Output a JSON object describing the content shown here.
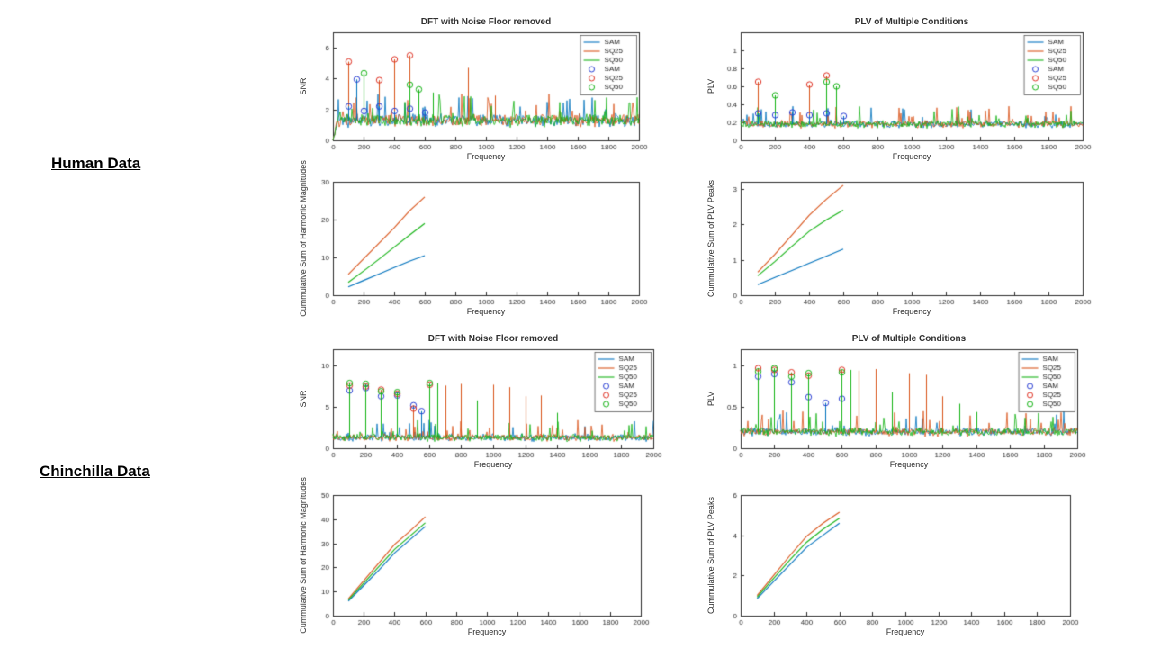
{
  "figure": {
    "background": "#ffffff"
  },
  "row_labels": [
    {
      "label": "Human Data"
    },
    {
      "label": "Chinchilla Data"
    }
  ],
  "palette": {
    "sam": "#0072BD",
    "sq25": "#D95319",
    "sq50": "#14B314",
    "sam_marker": "#2A3FD4",
    "sq25_marker": "#E03224",
    "sq50_marker": "#14B314",
    "axis": "#2b2b2b",
    "title_color": "#303030"
  },
  "chart_data": [
    {
      "id": "dft-human",
      "type": "line",
      "title": "DFT with Noise Floor removed",
      "xlabel": "Frequency",
      "ylabel": "SNR",
      "xlim": [
        0,
        2000
      ],
      "ylim": [
        0,
        7
      ],
      "xticks": [
        0,
        200,
        400,
        600,
        800,
        1000,
        1200,
        1400,
        1600,
        1800,
        2000
      ],
      "yticks": [
        0,
        2,
        4,
        6
      ],
      "legend": [
        {
          "label": "SAM",
          "style": "line",
          "color": "sam"
        },
        {
          "label": "SQ25",
          "style": "line",
          "color": "sq25"
        },
        {
          "label": "SQ50",
          "style": "line",
          "color": "sq50"
        },
        {
          "label": "SAM",
          "style": "marker",
          "color": "sam_marker"
        },
        {
          "label": "SQ25",
          "style": "marker",
          "color": "sq25_marker"
        },
        {
          "label": "SQ50",
          "style": "marker",
          "color": "sq50_marker"
        }
      ],
      "noise": {
        "series": [
          {
            "color": "sam"
          },
          {
            "color": "sq25"
          },
          {
            "color": "sq50"
          }
        ],
        "base": 1.3,
        "amp": 0.5,
        "spike": 1.2,
        "spike_p": 0.05,
        "zero_start": true
      },
      "peaks": [
        {
          "series": "sq25",
          "x": 100,
          "y": 5.1
        },
        {
          "series": "sq25",
          "x": 300,
          "y": 3.9
        },
        {
          "series": "sq25",
          "x": 400,
          "y": 5.25
        },
        {
          "series": "sq25",
          "x": 500,
          "y": 5.5
        },
        {
          "series": "sq50",
          "x": 200,
          "y": 4.35
        },
        {
          "series": "sq50",
          "x": 500,
          "y": 3.6
        },
        {
          "series": "sq50",
          "x": 560,
          "y": 3.3
        },
        {
          "series": "sam",
          "x": 150,
          "y": 3.95
        },
        {
          "series": "sam",
          "x": 100,
          "y": 2.2
        },
        {
          "series": "sam",
          "x": 200,
          "y": 1.9
        },
        {
          "series": "sam",
          "x": 300,
          "y": 2.2
        },
        {
          "series": "sam",
          "x": 400,
          "y": 1.9
        },
        {
          "series": "sam",
          "x": 500,
          "y": 2.05
        },
        {
          "series": "sam",
          "x": 600,
          "y": 1.8
        },
        {
          "series": "sq25",
          "x": 880,
          "y": 4.7,
          "circled": false
        },
        {
          "series": "sq50",
          "x": 650,
          "y": 3.1,
          "circled": false
        },
        {
          "series": "sq25",
          "x": 1060,
          "y": 2.9,
          "circled": false
        }
      ]
    },
    {
      "id": "plv-human",
      "type": "line",
      "title": "PLV of Multiple Conditions",
      "xlabel": "Frequency",
      "ylabel": "PLV",
      "xlim": [
        0,
        2000
      ],
      "ylim": [
        0,
        1.2
      ],
      "xticks": [
        0,
        200,
        400,
        600,
        800,
        1000,
        1200,
        1400,
        1600,
        1800,
        2000
      ],
      "yticks": [
        0,
        0.2,
        0.4,
        0.6,
        0.8,
        1
      ],
      "legend": [
        {
          "label": "SAM",
          "style": "line",
          "color": "sam"
        },
        {
          "label": "SQ25",
          "style": "line",
          "color": "sq25"
        },
        {
          "label": "SQ50",
          "style": "line",
          "color": "sq50"
        },
        {
          "label": "SAM",
          "style": "marker",
          "color": "sam_marker"
        },
        {
          "label": "SQ25",
          "style": "marker",
          "color": "sq25_marker"
        },
        {
          "label": "SQ50",
          "style": "marker",
          "color": "sq50_marker"
        }
      ],
      "noise": {
        "series": [
          {
            "color": "sam"
          },
          {
            "color": "sq25"
          },
          {
            "color": "sq50"
          }
        ],
        "base": 0.18,
        "amp": 0.05,
        "spike": 0.15,
        "spike_p": 0.05,
        "zero_start": false
      },
      "peaks": [
        {
          "series": "sq25",
          "x": 100,
          "y": 0.65
        },
        {
          "series": "sq25",
          "x": 400,
          "y": 0.62
        },
        {
          "series": "sq25",
          "x": 500,
          "y": 0.72
        },
        {
          "series": "sq50",
          "x": 200,
          "y": 0.5
        },
        {
          "series": "sq50",
          "x": 500,
          "y": 0.65
        },
        {
          "series": "sq50",
          "x": 560,
          "y": 0.6
        },
        {
          "series": "sam",
          "x": 100,
          "y": 0.3
        },
        {
          "series": "sam",
          "x": 200,
          "y": 0.28
        },
        {
          "series": "sam",
          "x": 300,
          "y": 0.31
        },
        {
          "series": "sam",
          "x": 400,
          "y": 0.28
        },
        {
          "series": "sam",
          "x": 500,
          "y": 0.3
        },
        {
          "series": "sam",
          "x": 600,
          "y": 0.27
        }
      ]
    },
    {
      "id": "cumharm-human",
      "type": "line",
      "title": "",
      "xlabel": "Frequency",
      "ylabel": "Cummulative Sum of Harmonic Magnitudes",
      "xlim": [
        0,
        2000
      ],
      "ylim": [
        0,
        30
      ],
      "xticks": [
        0,
        200,
        400,
        600,
        800,
        1000,
        1200,
        1400,
        1600,
        1800,
        2000
      ],
      "yticks": [
        0,
        10,
        20,
        30
      ],
      "x": [
        100,
        200,
        300,
        400,
        500,
        600
      ],
      "series": [
        {
          "name": "SAM",
          "color": "sam",
          "values": [
            2.2,
            3.9,
            5.6,
            7.3,
            9.0,
            10.5
          ]
        },
        {
          "name": "SQ25",
          "color": "sq25",
          "values": [
            5.5,
            9.6,
            13.7,
            17.8,
            22.3,
            26.0
          ]
        },
        {
          "name": "SQ50",
          "color": "sq50",
          "values": [
            3.4,
            6.4,
            9.5,
            12.7,
            15.9,
            19.0
          ]
        }
      ]
    },
    {
      "id": "cumplv-human",
      "type": "line",
      "title": "",
      "xlabel": "Frequency",
      "ylabel": "Cummulative Sum of PLV Peaks",
      "xlim": [
        0,
        2000
      ],
      "ylim": [
        0,
        3.2
      ],
      "xticks": [
        0,
        200,
        400,
        600,
        800,
        1000,
        1200,
        1400,
        1600,
        1800,
        2000
      ],
      "yticks": [
        0,
        1,
        2,
        3
      ],
      "x": [
        100,
        200,
        300,
        400,
        500,
        600
      ],
      "series": [
        {
          "name": "SAM",
          "color": "sam",
          "values": [
            0.3,
            0.5,
            0.7,
            0.9,
            1.1,
            1.3
          ]
        },
        {
          "name": "SQ25",
          "color": "sq25",
          "values": [
            0.65,
            1.15,
            1.7,
            2.25,
            2.7,
            3.1
          ]
        },
        {
          "name": "SQ50",
          "color": "sq50",
          "values": [
            0.55,
            0.95,
            1.38,
            1.8,
            2.12,
            2.4
          ]
        }
      ]
    },
    {
      "id": "dft-chinchilla",
      "type": "line",
      "title": "DFT with Noise Floor removed",
      "xlabel": "Frequency",
      "ylabel": "SNR",
      "xlim": [
        0,
        2000
      ],
      "ylim": [
        0,
        12
      ],
      "xticks": [
        0,
        200,
        400,
        600,
        800,
        1000,
        1200,
        1400,
        1600,
        1800,
        2000
      ],
      "yticks": [
        0,
        5,
        10
      ],
      "legend": [
        {
          "label": "SAM",
          "style": "line",
          "color": "sam"
        },
        {
          "label": "SQ25",
          "style": "line",
          "color": "sq25"
        },
        {
          "label": "SQ50",
          "style": "line",
          "color": "sq50"
        },
        {
          "label": "SAM",
          "style": "marker",
          "color": "sam_marker"
        },
        {
          "label": "SQ25",
          "style": "marker",
          "color": "sq25_marker"
        },
        {
          "label": "SQ50",
          "style": "marker",
          "color": "sq50_marker"
        }
      ],
      "noise": {
        "series": [
          {
            "color": "sam"
          },
          {
            "color": "sq25"
          },
          {
            "color": "sq50"
          }
        ],
        "base": 1.3,
        "amp": 0.55,
        "spike": 1.6,
        "spike_p": 0.06,
        "zero_start": false
      },
      "peaks": [
        {
          "series": "sam",
          "x": 100,
          "y": 7.0
        },
        {
          "series": "sam",
          "x": 200,
          "y": 7.3
        },
        {
          "series": "sam",
          "x": 300,
          "y": 6.3
        },
        {
          "series": "sam",
          "x": 400,
          "y": 6.4
        },
        {
          "series": "sam",
          "x": 500,
          "y": 5.2
        },
        {
          "series": "sam",
          "x": 550,
          "y": 4.5
        },
        {
          "series": "sq25",
          "x": 100,
          "y": 7.6
        },
        {
          "series": "sq25",
          "x": 200,
          "y": 7.5
        },
        {
          "series": "sq25",
          "x": 300,
          "y": 7.1
        },
        {
          "series": "sq25",
          "x": 400,
          "y": 6.6
        },
        {
          "series": "sq25",
          "x": 500,
          "y": 4.8
        },
        {
          "series": "sq25",
          "x": 600,
          "y": 7.7
        },
        {
          "series": "sq50",
          "x": 100,
          "y": 7.9
        },
        {
          "series": "sq50",
          "x": 200,
          "y": 7.8
        },
        {
          "series": "sq50",
          "x": 300,
          "y": 6.9
        },
        {
          "series": "sq50",
          "x": 400,
          "y": 6.8
        },
        {
          "series": "sq50",
          "x": 600,
          "y": 7.9
        },
        {
          "series": "sq50",
          "x": 650,
          "y": 7.9,
          "circled": false
        },
        {
          "series": "sq25",
          "x": 700,
          "y": 7.6,
          "circled": false
        },
        {
          "series": "sq25",
          "x": 800,
          "y": 7.8,
          "circled": false
        },
        {
          "series": "sq50",
          "x": 900,
          "y": 5.8,
          "circled": false
        },
        {
          "series": "sq25",
          "x": 1000,
          "y": 7.7,
          "circled": false
        },
        {
          "series": "sq25",
          "x": 1100,
          "y": 7.4,
          "circled": false
        },
        {
          "series": "sq25",
          "x": 1200,
          "y": 6.3,
          "circled": false
        },
        {
          "series": "sq25",
          "x": 1300,
          "y": 6.4,
          "circled": false
        },
        {
          "series": "sq50",
          "x": 1400,
          "y": 4.3,
          "circled": false
        }
      ]
    },
    {
      "id": "plv-chinchilla",
      "type": "line",
      "title": "PLV of Multiple Conditions",
      "xlabel": "Frequency",
      "ylabel": "PLV",
      "xlim": [
        0,
        2000
      ],
      "ylim": [
        0,
        1.2
      ],
      "xticks": [
        0,
        200,
        400,
        600,
        800,
        1000,
        1200,
        1400,
        1600,
        1800,
        2000
      ],
      "yticks": [
        0,
        0.5,
        1
      ],
      "legend": [
        {
          "label": "SAM",
          "style": "line",
          "color": "sam"
        },
        {
          "label": "SQ25",
          "style": "line",
          "color": "sq25"
        },
        {
          "label": "SQ50",
          "style": "line",
          "color": "sq50"
        },
        {
          "label": "SAM",
          "style": "marker",
          "color": "sam_marker"
        },
        {
          "label": "SQ25",
          "style": "marker",
          "color": "sq25_marker"
        },
        {
          "label": "SQ50",
          "style": "marker",
          "color": "sq50_marker"
        }
      ],
      "noise": {
        "series": [
          {
            "color": "sam"
          },
          {
            "color": "sq25"
          },
          {
            "color": "sq50"
          }
        ],
        "base": 0.2,
        "amp": 0.06,
        "spike": 0.2,
        "spike_p": 0.06,
        "zero_start": false
      },
      "peaks": [
        {
          "series": "sam",
          "x": 100,
          "y": 0.87
        },
        {
          "series": "sam",
          "x": 200,
          "y": 0.9
        },
        {
          "series": "sam",
          "x": 300,
          "y": 0.8
        },
        {
          "series": "sam",
          "x": 400,
          "y": 0.62
        },
        {
          "series": "sam",
          "x": 500,
          "y": 0.55
        },
        {
          "series": "sam",
          "x": 600,
          "y": 0.6
        },
        {
          "series": "sq25",
          "x": 100,
          "y": 0.97
        },
        {
          "series": "sq25",
          "x": 200,
          "y": 0.95
        },
        {
          "series": "sq25",
          "x": 300,
          "y": 0.92
        },
        {
          "series": "sq25",
          "x": 400,
          "y": 0.88
        },
        {
          "series": "sq25",
          "x": 600,
          "y": 0.95
        },
        {
          "series": "sq50",
          "x": 100,
          "y": 0.93
        },
        {
          "series": "sq50",
          "x": 200,
          "y": 0.97
        },
        {
          "series": "sq50",
          "x": 300,
          "y": 0.87
        },
        {
          "series": "sq50",
          "x": 400,
          "y": 0.91
        },
        {
          "series": "sq50",
          "x": 600,
          "y": 0.92
        },
        {
          "series": "sq50",
          "x": 650,
          "y": 0.95,
          "circled": false
        },
        {
          "series": "sq25",
          "x": 700,
          "y": 0.94,
          "circled": false
        },
        {
          "series": "sq25",
          "x": 800,
          "y": 0.96,
          "circled": false
        },
        {
          "series": "sq50",
          "x": 900,
          "y": 0.68,
          "circled": false
        },
        {
          "series": "sq25",
          "x": 1000,
          "y": 0.91,
          "circled": false
        },
        {
          "series": "sq25",
          "x": 1100,
          "y": 0.89,
          "circled": false
        },
        {
          "series": "sq25",
          "x": 1200,
          "y": 0.63,
          "circled": false
        },
        {
          "series": "sq50",
          "x": 1300,
          "y": 0.54,
          "circled": false
        },
        {
          "series": "sq50",
          "x": 1400,
          "y": 0.44,
          "circled": false
        }
      ]
    },
    {
      "id": "cumharm-chinchilla",
      "type": "line",
      "title": "",
      "xlabel": "Frequency",
      "ylabel": "Cummulative Sum of Harmonic Magnitudes",
      "xlim": [
        0,
        2000
      ],
      "ylim": [
        0,
        50
      ],
      "xticks": [
        0,
        200,
        400,
        600,
        800,
        1000,
        1200,
        1400,
        1600,
        1800,
        2000
      ],
      "yticks": [
        0,
        10,
        20,
        30,
        40,
        50
      ],
      "x": [
        100,
        200,
        300,
        400,
        500,
        600
      ],
      "series": [
        {
          "name": "SAM",
          "color": "sam",
          "values": [
            6.0,
            12.5,
            19.0,
            26.0,
            31.5,
            37.0
          ]
        },
        {
          "name": "SQ25",
          "color": "sq25",
          "values": [
            7.0,
            14.5,
            22.0,
            29.5,
            35.0,
            41.0
          ]
        },
        {
          "name": "SQ50",
          "color": "sq50",
          "values": [
            6.5,
            13.5,
            20.5,
            27.5,
            33.0,
            38.5
          ]
        }
      ]
    },
    {
      "id": "cumplv-chinchilla",
      "type": "line",
      "title": "",
      "xlabel": "Frequency",
      "ylabel": "Cummulative Sum of PLV Peaks",
      "xlim": [
        0,
        2000
      ],
      "ylim": [
        0,
        6
      ],
      "xticks": [
        0,
        200,
        400,
        600,
        800,
        1000,
        1200,
        1400,
        1600,
        1800,
        2000
      ],
      "yticks": [
        0,
        2,
        4,
        6
      ],
      "x": [
        100,
        200,
        300,
        400,
        500,
        600
      ],
      "series": [
        {
          "name": "SAM",
          "color": "sam",
          "values": [
            0.85,
            1.7,
            2.55,
            3.4,
            4.0,
            4.6
          ]
        },
        {
          "name": "SQ25",
          "color": "sq25",
          "values": [
            1.0,
            2.0,
            3.0,
            3.95,
            4.6,
            5.15
          ]
        },
        {
          "name": "SQ50",
          "color": "sq50",
          "values": [
            0.92,
            1.85,
            2.78,
            3.65,
            4.3,
            4.85
          ]
        }
      ]
    }
  ]
}
